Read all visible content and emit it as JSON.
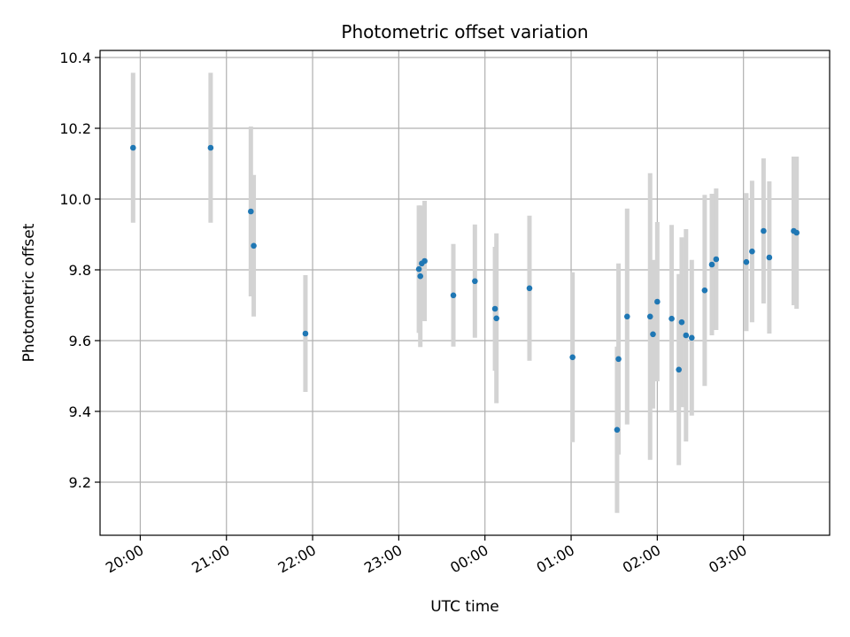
{
  "chart_data": {
    "type": "scatter",
    "title": "Photometric offset variation",
    "xlabel": "UTC time",
    "ylabel": "Photometric offset",
    "grid": true,
    "legend": "none",
    "x_axis": {
      "unit": "UTC time",
      "range": [
        "19:32",
        "04:00"
      ],
      "ticks": [
        "20:00",
        "21:00",
        "22:00",
        "23:00",
        "00:00",
        "01:00",
        "02:00",
        "03:00"
      ]
    },
    "y_axis": {
      "range": [
        9.05,
        10.42
      ],
      "ticks": [
        "9.2",
        "9.4",
        "9.6",
        "9.8",
        "10.0",
        "10.2",
        "10.4"
      ],
      "tick_values": [
        9.2,
        9.4,
        9.6,
        9.8,
        10.0,
        10.2,
        10.4
      ]
    },
    "marker_color": "#1f77b4",
    "errorbar_color": "#d3d3d3",
    "points": [
      {
        "t": "19:55",
        "y": 10.145,
        "err": 0.212
      },
      {
        "t": "20:49",
        "y": 10.145,
        "err": 0.212
      },
      {
        "t": "21:17",
        "y": 9.965,
        "err": 0.24
      },
      {
        "t": "21:19",
        "y": 9.868,
        "err": 0.2
      },
      {
        "t": "21:55",
        "y": 9.62,
        "err": 0.165
      },
      {
        "t": "23:14",
        "y": 9.802,
        "err": 0.18
      },
      {
        "t": "23:15",
        "y": 9.782,
        "err": 0.2
      },
      {
        "t": "23:16",
        "y": 9.818,
        "err": 0.16
      },
      {
        "t": "23:18",
        "y": 9.825,
        "err": 0.17
      },
      {
        "t": "23:38",
        "y": 9.728,
        "err": 0.145
      },
      {
        "t": "23:53",
        "y": 9.768,
        "err": 0.16
      },
      {
        "t": "00:07",
        "y": 9.69,
        "err": 0.175
      },
      {
        "t": "00:08",
        "y": 9.663,
        "err": 0.24
      },
      {
        "t": "00:31",
        "y": 9.748,
        "err": 0.205
      },
      {
        "t": "01:01",
        "y": 9.553,
        "err": 0.24
      },
      {
        "t": "01:32",
        "y": 9.348,
        "err": 0.235
      },
      {
        "t": "01:33",
        "y": 9.548,
        "err": 0.27
      },
      {
        "t": "01:39",
        "y": 9.668,
        "err": 0.305
      },
      {
        "t": "01:55",
        "y": 9.668,
        "err": 0.405
      },
      {
        "t": "01:57",
        "y": 9.618,
        "err": 0.21
      },
      {
        "t": "02:00",
        "y": 9.71,
        "err": 0.225
      },
      {
        "t": "02:10",
        "y": 9.662,
        "err": 0.265
      },
      {
        "t": "02:15",
        "y": 9.518,
        "err": 0.27
      },
      {
        "t": "02:17",
        "y": 9.652,
        "err": 0.24
      },
      {
        "t": "02:20",
        "y": 9.615,
        "err": 0.3
      },
      {
        "t": "02:24",
        "y": 9.608,
        "err": 0.22
      },
      {
        "t": "02:33",
        "y": 9.742,
        "err": 0.27
      },
      {
        "t": "02:38",
        "y": 9.815,
        "err": 0.2
      },
      {
        "t": "02:41",
        "y": 9.83,
        "err": 0.2
      },
      {
        "t": "03:02",
        "y": 9.822,
        "err": 0.195
      },
      {
        "t": "03:06",
        "y": 9.852,
        "err": 0.2
      },
      {
        "t": "03:14",
        "y": 9.91,
        "err": 0.205
      },
      {
        "t": "03:18",
        "y": 9.835,
        "err": 0.215
      },
      {
        "t": "03:35",
        "y": 9.91,
        "err": 0.21
      },
      {
        "t": "03:37",
        "y": 9.905,
        "err": 0.215
      }
    ]
  }
}
